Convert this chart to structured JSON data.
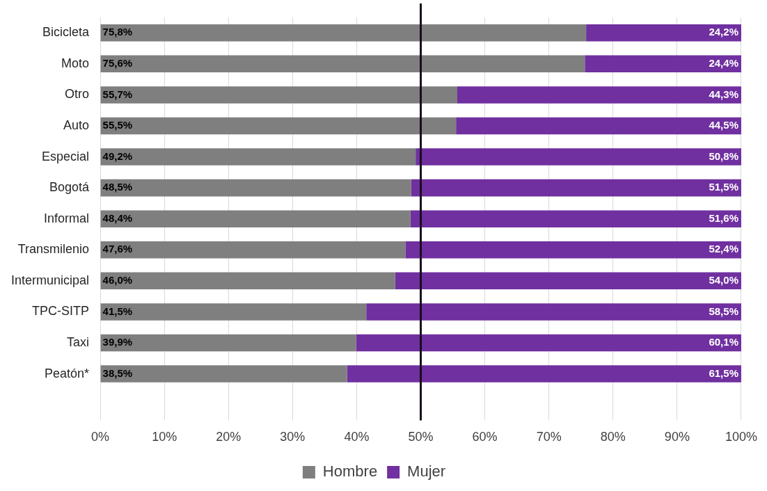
{
  "chart_data": {
    "type": "bar",
    "orientation": "horizontal",
    "stacked": true,
    "categories": [
      "Bicicleta",
      "Moto",
      "Otro",
      "Auto",
      "Especial",
      "Bogotá",
      "Informal",
      "Transmilenio",
      "Intermunicipal",
      "TPC-SITP",
      "Taxi",
      "Peatón*"
    ],
    "series": [
      {
        "name": "Hombre",
        "color": "#7f7f7f",
        "values": [
          75.8,
          75.6,
          55.7,
          55.5,
          49.2,
          48.5,
          48.4,
          47.6,
          46.0,
          41.5,
          39.9,
          38.5
        ],
        "value_labels": [
          "75,8%",
          "75,6%",
          "55,7%",
          "55,5%",
          "49,2%",
          "48,5%",
          "48,4%",
          "47,6%",
          "46,0%",
          "41,5%",
          "39,9%",
          "38,5%"
        ]
      },
      {
        "name": "Mujer",
        "color": "#7030a0",
        "values": [
          24.2,
          24.4,
          44.3,
          44.5,
          50.8,
          51.5,
          51.6,
          52.4,
          54.0,
          58.5,
          60.1,
          61.5
        ],
        "value_labels": [
          "24,2%",
          "24,4%",
          "44,3%",
          "44,5%",
          "50,8%",
          "51,5%",
          "51,6%",
          "52,4%",
          "54,0%",
          "58,5%",
          "60,1%",
          "61,5%"
        ]
      }
    ],
    "xlim": [
      0,
      100
    ],
    "xticks": [
      {
        "value": 0,
        "label": "0%"
      },
      {
        "value": 10,
        "label": "10%"
      },
      {
        "value": 20,
        "label": "20%"
      },
      {
        "value": 30,
        "label": "30%"
      },
      {
        "value": 40,
        "label": "40%"
      },
      {
        "value": 50,
        "label": "50%"
      },
      {
        "value": 60,
        "label": "60%"
      },
      {
        "value": 70,
        "label": "70%"
      },
      {
        "value": 80,
        "label": "80%"
      },
      {
        "value": 90,
        "label": "90%"
      },
      {
        "value": 100,
        "label": "100%"
      }
    ],
    "ref_lines": [
      {
        "axis": "x",
        "value": 50,
        "label": null,
        "color": "#1a0a1e"
      }
    ],
    "grid": "x",
    "legend": "bottom"
  }
}
